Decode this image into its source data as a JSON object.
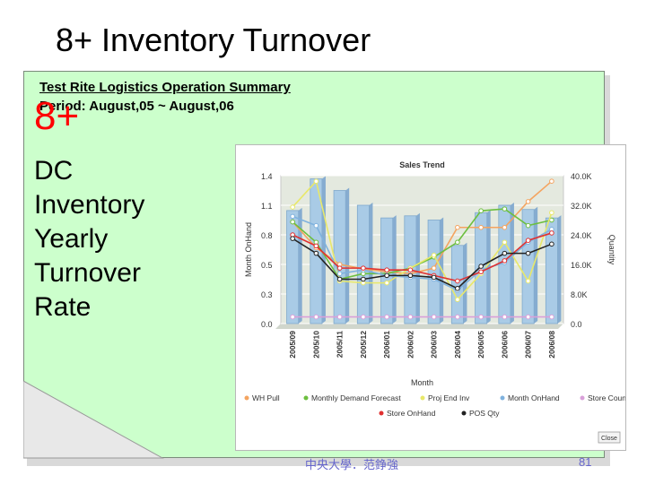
{
  "slide": {
    "title": "8+ Inventory Turnover",
    "summary_title": "Test Rite Logistics Operation Summary",
    "summary_period": "Period: August,05 ~ August,06",
    "big_label": "8+",
    "side_lines": [
      "DC",
      "Inventory",
      "Yearly",
      "Turnover",
      "Rate"
    ],
    "footer": "中央大學．范錚強",
    "page_number": "81"
  },
  "chart_data": {
    "type": "bar",
    "title": "Sales Trend",
    "xlabel": "Month",
    "ylabel": "Month OnHand",
    "y2label": "Quantity",
    "left_ticks": [
      "0.0",
      "0.3",
      "0.5",
      "0.8",
      "1.1",
      "1.4"
    ],
    "right_ticks": [
      "0.0",
      "8.0K",
      "16.0K",
      "24.0K",
      "32.0K",
      "40.0K"
    ],
    "ylim": [
      0,
      1.4
    ],
    "y2lim": [
      0,
      40000
    ],
    "categories": [
      "2005/09",
      "2005/10",
      "2005/11",
      "2005/12",
      "2006/01",
      "2006/02",
      "2006/03",
      "2006/04",
      "2006/05",
      "2006/06",
      "2006/07",
      "2006/08"
    ],
    "bar_series": {
      "name": "Month OnHand",
      "axis": "left",
      "values": [
        1.07,
        1.37,
        1.26,
        1.12,
        1.0,
        1.02,
        0.98,
        0.74,
        1.05,
        1.12,
        1.08,
        1.0
      ]
    },
    "line_series": [
      {
        "name": "WH Pull",
        "color": "#f4a460",
        "values": [
          27500,
          20500,
          16000,
          14800,
          14000,
          13500,
          15000,
          26000,
          26000,
          26000,
          33000,
          38500
        ]
      },
      {
        "name": "Monthly Demand Forecast",
        "color": "#6dbf3f",
        "values": [
          27500,
          22000,
          12000,
          13500,
          13500,
          15000,
          18000,
          22000,
          30500,
          31000,
          26500,
          28000
        ]
      },
      {
        "name": "Proj End Inv",
        "color": "#e8e86a",
        "values": [
          31500,
          38500,
          11500,
          11000,
          11000,
          15000,
          18500,
          6500,
          13500,
          22000,
          11500,
          30000
        ]
      },
      {
        "name": "Month OnHand",
        "color": "#7fb2de",
        "values": [
          29000,
          26500,
          13500,
          14500,
          13000,
          12500,
          12000,
          9000,
          14500,
          16500,
          22000,
          25500
        ]
      },
      {
        "name": "Store Count",
        "color": "#d9a0d9",
        "values": [
          1800,
          1800,
          1800,
          1800,
          1800,
          1800,
          1800,
          1800,
          1800,
          1800,
          1800,
          1800
        ]
      },
      {
        "name": "Store OnHand",
        "color": "#e03030",
        "values": [
          24000,
          21000,
          15000,
          15000,
          14500,
          14500,
          13000,
          11500,
          14000,
          17000,
          22500,
          24500
        ]
      },
      {
        "name": "POS Qty",
        "color": "#222222",
        "values": [
          23000,
          19000,
          12000,
          12000,
          13000,
          13000,
          12500,
          9500,
          15500,
          19000,
          19000,
          21500
        ]
      }
    ],
    "legend": {
      "placement": "bottom"
    },
    "corner_button": "Close"
  }
}
